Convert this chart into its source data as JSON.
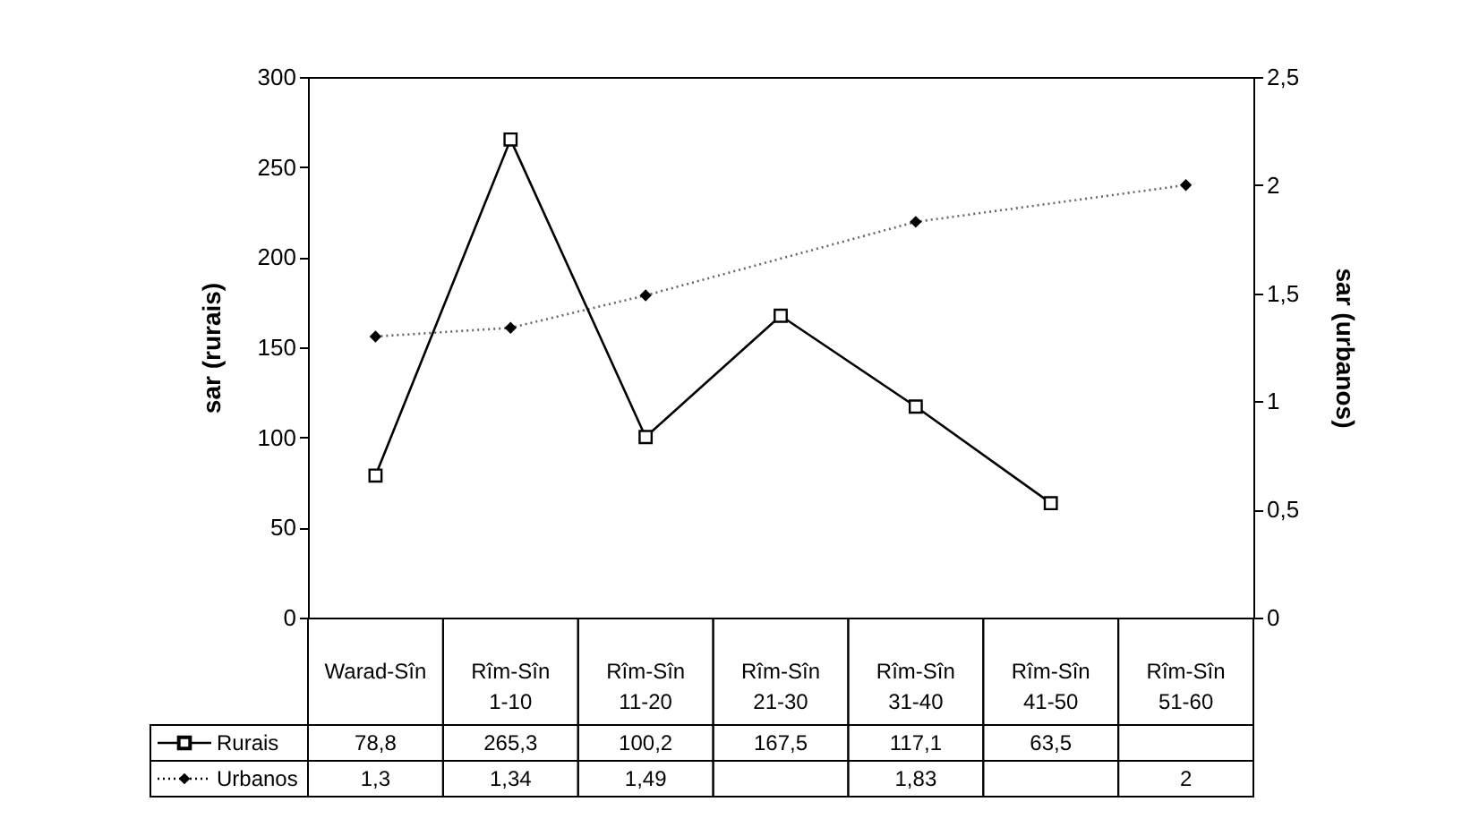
{
  "chart_data": {
    "type": "line",
    "ylabel": "sar (rurais)",
    "y2label": "sar (urbanos)",
    "categories": [
      "Warad-Sîn",
      "Rîm-Sîn 1-10",
      "Rîm-Sîn 11-20",
      "Rîm-Sîn 21-30",
      "Rîm-Sîn 31-40",
      "Rîm-Sîn 41-50",
      "Rîm-Sîn 51-60"
    ],
    "series": [
      {
        "name": "Rurais",
        "color": "#000000",
        "marker": "square",
        "line_style": "solid",
        "values": [
          78.8,
          265.3,
          100.2,
          167.5,
          117.1,
          63.5,
          null
        ],
        "value_labels": [
          "78,8",
          "265,3",
          "100,2",
          "167,5",
          "117,1",
          "63,5",
          null
        ]
      },
      {
        "name": "Urbanos",
        "color": "#000000",
        "marker": "diamond",
        "line_style": "dotted",
        "axis": "y2",
        "values": [
          1.3,
          1.34,
          1.49,
          null,
          1.83,
          null,
          2
        ],
        "value_labels": [
          "1,3",
          "1,34",
          "1,49",
          null,
          "1,83",
          null,
          "2"
        ]
      }
    ],
    "ylim": [
      0,
      300
    ],
    "yticks": [
      0,
      50,
      100,
      150,
      200,
      250,
      300
    ],
    "y2lim": [
      0,
      2.5
    ],
    "y2ticks": [
      0,
      {
        "value": 0.5,
        "label": "0,5"
      },
      1,
      {
        "value": 1.5,
        "label": "1,5"
      },
      2,
      {
        "value": 2.5,
        "label": "2,5"
      }
    ],
    "legend": "bottom left",
    "grid": false
  }
}
